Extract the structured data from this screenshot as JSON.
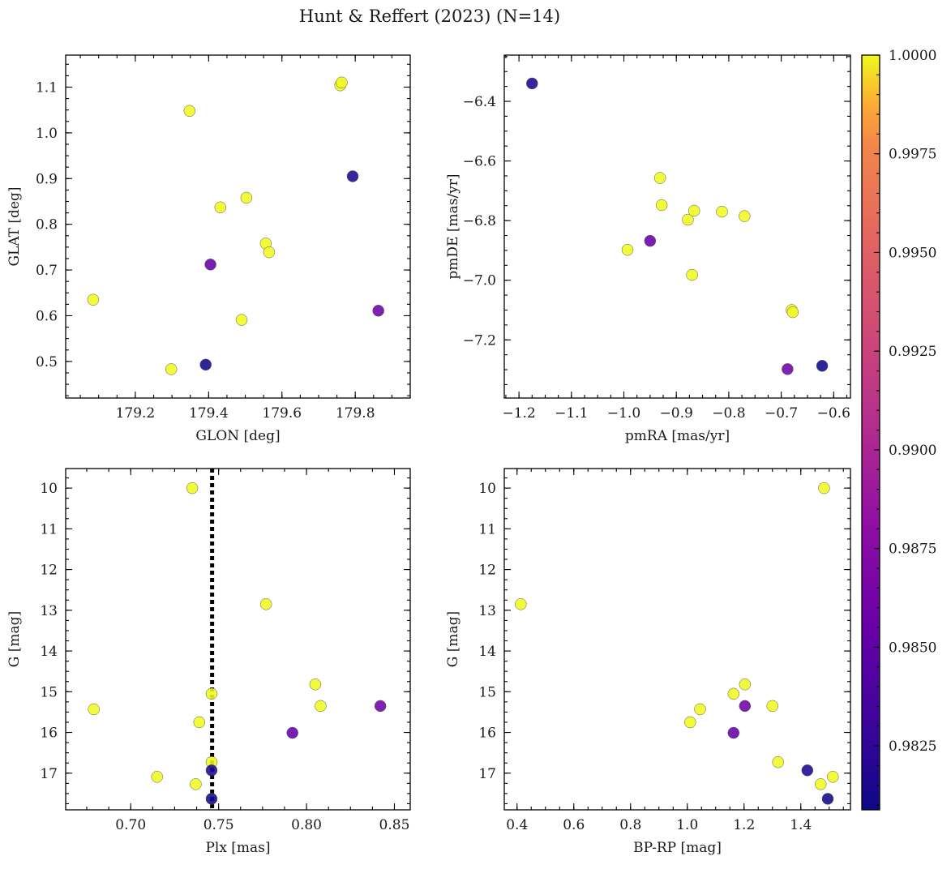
{
  "chart_data": {
    "type": "scatter",
    "title": "Hunt & Reffert (2023) (N=14)",
    "colorbar": {
      "colormap": "plasma",
      "range": [
        0.98088,
        1.0
      ],
      "ticks": [
        0.9825,
        0.985,
        0.9875,
        0.99,
        0.9925,
        0.995,
        0.9975,
        1.0
      ],
      "tick_labels": [
        "0.9825",
        "0.9850",
        "0.9875",
        "0.9900",
        "0.9925",
        "0.9950",
        "0.9975",
        "1.0000"
      ]
    },
    "stars": [
      {
        "glon": 179.085,
        "glat": 0.635,
        "pmra": -0.993,
        "pmde": -6.898,
        "plx": 0.679,
        "g": 15.43,
        "bprp": 1.045,
        "prob": 1.0
      },
      {
        "glon": 179.298,
        "glat": 0.483,
        "pmra": -0.87,
        "pmde": -6.982,
        "plx": 0.715,
        "g": 17.09,
        "bprp": 1.513,
        "prob": 1.0
      },
      {
        "glon": 179.348,
        "glat": 1.048,
        "pmra": -0.878,
        "pmde": -6.797,
        "plx": 0.735,
        "g": 10.0,
        "bprp": 1.482,
        "prob": 1.0
      },
      {
        "glon": 179.392,
        "glat": 0.493,
        "pmra": -0.622,
        "pmde": -7.287,
        "plx": 0.746,
        "g": 17.63,
        "bprp": 1.495,
        "prob": 0.981
      },
      {
        "glon": 179.405,
        "glat": 0.712,
        "pmra": -0.95,
        "pmde": -6.868,
        "plx": 0.792,
        "g": 16.01,
        "bprp": 1.163,
        "prob": 0.9855
      },
      {
        "glon": 179.432,
        "glat": 0.837,
        "pmra": -0.866,
        "pmde": -6.767,
        "plx": 0.737,
        "g": 17.27,
        "bprp": 1.47,
        "prob": 1.0
      },
      {
        "glon": 179.49,
        "glat": 0.591,
        "pmra": -0.931,
        "pmde": -6.657,
        "plx": 0.746,
        "g": 16.73,
        "bprp": 1.32,
        "prob": 1.0
      },
      {
        "glon": 179.503,
        "glat": 0.858,
        "pmra": -0.813,
        "pmde": -6.77,
        "plx": 0.777,
        "g": 12.85,
        "bprp": 0.413,
        "prob": 1.0
      },
      {
        "glon": 179.556,
        "glat": 0.758,
        "pmra": -0.928,
        "pmde": -6.748,
        "plx": 0.805,
        "g": 14.82,
        "bprp": 1.203,
        "prob": 1.0
      },
      {
        "glon": 179.565,
        "glat": 0.739,
        "pmra": -0.77,
        "pmde": -6.785,
        "plx": 0.808,
        "g": 15.35,
        "bprp": 1.3,
        "prob": 1.0
      },
      {
        "glon": 179.759,
        "glat": 1.104,
        "pmra": -0.68,
        "pmde": -7.1,
        "plx": 0.739,
        "g": 15.75,
        "bprp": 1.01,
        "prob": 1.0
      },
      {
        "glon": 179.763,
        "glat": 1.11,
        "pmra": -0.678,
        "pmde": -7.107,
        "plx": 0.746,
        "g": 15.05,
        "bprp": 1.163,
        "prob": 1.0
      },
      {
        "glon": 179.793,
        "glat": 0.905,
        "pmra": -1.175,
        "pmde": -6.34,
        "plx": 0.746,
        "g": 16.93,
        "bprp": 1.423,
        "prob": 0.9815
      },
      {
        "glon": 179.863,
        "glat": 0.611,
        "pmra": -0.688,
        "pmde": -7.298,
        "plx": 0.842,
        "g": 15.35,
        "bprp": 1.203,
        "prob": 0.986
      }
    ],
    "panels": [
      {
        "id": "glon-glat",
        "x": "glon",
        "y": "glat",
        "xlabel": "GLON [deg]",
        "ylabel": "GLAT [deg]",
        "xlim": [
          179.01,
          179.95
        ],
        "ylim": [
          0.42,
          1.17
        ],
        "xticks": [
          179.2,
          179.4,
          179.6,
          179.8
        ],
        "xtick_labels": [
          "179.2",
          "179.4",
          "179.6",
          "179.8"
        ],
        "yticks": [
          0.5,
          0.6,
          0.7,
          0.8,
          0.9,
          1.0,
          1.1
        ],
        "ytick_labels": [
          "0.5",
          "0.6",
          "0.7",
          "0.8",
          "0.9",
          "1.0",
          "1.1"
        ],
        "invert_y": false
      },
      {
        "id": "pm",
        "x": "pmra",
        "y": "pmde",
        "xlabel": "pmRA [mas/yr]",
        "ylabel": "pmDE [mas/yr]",
        "xlim": [
          -1.228,
          -0.568
        ],
        "ylim": [
          -7.395,
          -6.245
        ],
        "xticks": [
          -1.2,
          -1.1,
          -1.0,
          -0.9,
          -0.8,
          -0.7,
          -0.6
        ],
        "xtick_labels": [
          "−1.2",
          "−1.1",
          "−1.0",
          "−0.9",
          "−0.8",
          "−0.7",
          "−0.6"
        ],
        "yticks": [
          -7.2,
          -7.0,
          -6.8,
          -6.6,
          -6.4
        ],
        "ytick_labels": [
          "−7.2",
          "−7.0",
          "−6.8",
          "−6.6",
          "−6.4"
        ],
        "invert_y": false
      },
      {
        "id": "plx-g",
        "x": "plx",
        "y": "g",
        "xlabel": "Plx [mas]",
        "ylabel": "G [mag]",
        "xlim": [
          0.663,
          0.859
        ],
        "ylim": [
          9.52,
          17.9
        ],
        "xticks": [
          0.7,
          0.75,
          0.8,
          0.85
        ],
        "xtick_labels": [
          "0.70",
          "0.75",
          "0.80",
          "0.85"
        ],
        "yticks": [
          10,
          11,
          12,
          13,
          14,
          15,
          16,
          17
        ],
        "ytick_labels": [
          "10",
          "11",
          "12",
          "13",
          "14",
          "15",
          "16",
          "17"
        ],
        "invert_y": true,
        "vline": 0.7463
      },
      {
        "id": "cmd",
        "x": "bprp",
        "y": "g",
        "xlabel": "BP-RP [mag]",
        "ylabel": "G [mag]",
        "xlim": [
          0.355,
          1.575
        ],
        "ylim": [
          9.52,
          17.9
        ],
        "xticks": [
          0.4,
          0.6,
          0.8,
          1.0,
          1.2,
          1.4
        ],
        "xtick_labels": [
          "0.4",
          "0.6",
          "0.8",
          "1.0",
          "1.2",
          "1.4"
        ],
        "yticks": [
          10,
          11,
          12,
          13,
          14,
          15,
          16,
          17
        ],
        "ytick_labels": [
          "10",
          "11",
          "12",
          "13",
          "14",
          "15",
          "16",
          "17"
        ],
        "invert_y": true
      }
    ]
  }
}
